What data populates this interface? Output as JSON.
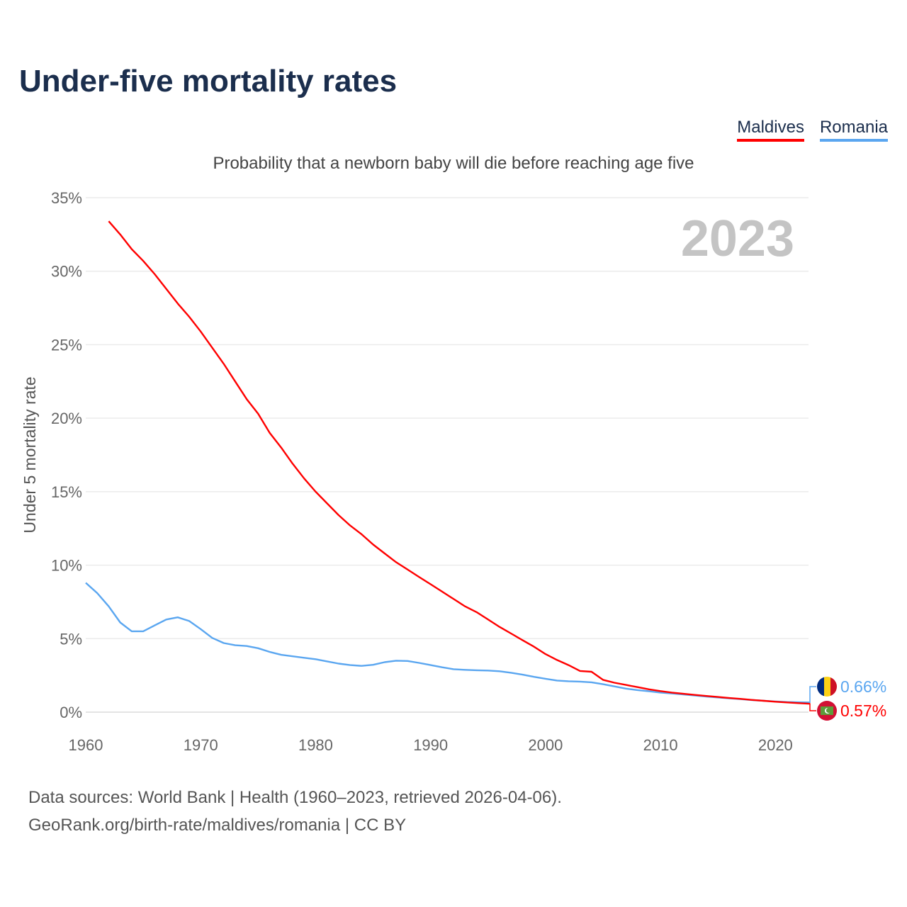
{
  "title": "Under-five mortality rates",
  "subtitle": "Probability that a newborn baby will die before reaching age five",
  "year_label": "2023",
  "footer": {
    "line1": "Data sources: World Bank | Health (1960–2023, retrieved 2026-04-06).",
    "line2": "GeoRank.org/birth-rate/maldives/romania | CC BY"
  },
  "chart_data": {
    "type": "line",
    "title": "Under-five mortality rates",
    "xlabel": "",
    "ylabel": "Under 5 mortality rate",
    "xlim": [
      1960,
      2023
    ],
    "ylim": [
      0,
      35
    ],
    "grid": true,
    "legend_placement": "top-right",
    "x_ticks": [
      "1960",
      "1970",
      "1980",
      "1990",
      "2000",
      "2010",
      "2020"
    ],
    "y_ticks": [
      "0%",
      "5%",
      "10%",
      "15%",
      "20%",
      "25%",
      "30%",
      "35%"
    ],
    "series": [
      {
        "name": "Maldives",
        "color": "#ff0000",
        "start_year": 1962,
        "end_label": "0.57%",
        "flag": "maldives-flag",
        "values": [
          33.4,
          32.5,
          31.5,
          30.7,
          29.8,
          28.8,
          27.8,
          26.9,
          25.9,
          24.8,
          23.7,
          22.5,
          21.3,
          20.3,
          19.0,
          18.0,
          16.9,
          15.9,
          15.0,
          14.2,
          13.4,
          12.7,
          12.1,
          11.4,
          10.8,
          10.2,
          9.7,
          9.2,
          8.7,
          8.2,
          7.7,
          7.2,
          6.8,
          6.3,
          5.8,
          5.35,
          4.9,
          4.45,
          3.95,
          3.55,
          3.2,
          2.8,
          2.75,
          2.2,
          2.0,
          1.85,
          1.7,
          1.55,
          1.43,
          1.33,
          1.25,
          1.17,
          1.1,
          1.03,
          0.96,
          0.9,
          0.83,
          0.77,
          0.71,
          0.66,
          0.61,
          0.57
        ]
      },
      {
        "name": "Romania",
        "color": "#5aa6f0",
        "start_year": 1960,
        "end_label": "0.66%",
        "flag": "romania-flag",
        "values": [
          8.8,
          8.1,
          7.2,
          6.1,
          5.5,
          5.5,
          5.9,
          6.3,
          6.45,
          6.2,
          5.65,
          5.05,
          4.7,
          4.55,
          4.5,
          4.35,
          4.1,
          3.9,
          3.8,
          3.7,
          3.6,
          3.45,
          3.3,
          3.2,
          3.15,
          3.22,
          3.4,
          3.5,
          3.48,
          3.35,
          3.2,
          3.05,
          2.92,
          2.88,
          2.85,
          2.83,
          2.78,
          2.68,
          2.55,
          2.4,
          2.27,
          2.15,
          2.1,
          2.08,
          2.03,
          1.9,
          1.75,
          1.6,
          1.5,
          1.42,
          1.33,
          1.27,
          1.2,
          1.13,
          1.06,
          1.0,
          0.94,
          0.88,
          0.82,
          0.77,
          0.73,
          0.69,
          0.67,
          0.66
        ]
      }
    ]
  }
}
